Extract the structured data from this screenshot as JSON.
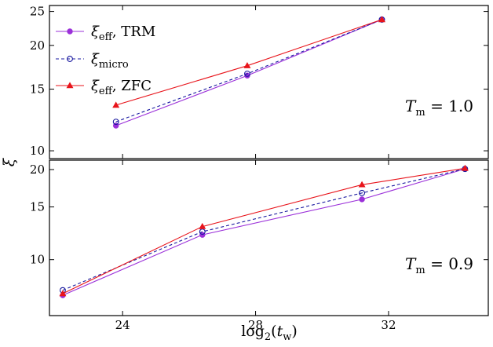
{
  "chart_data": [
    {
      "type": "line",
      "panel": "top",
      "xlim": [
        21.8,
        35.0
      ],
      "ylim": [
        9.5,
        26.0
      ],
      "yscale": "log",
      "yticks": [
        10,
        15,
        20,
        25
      ],
      "ytick_labels": [
        "10",
        "15",
        "20",
        "25"
      ],
      "annotation": "T_m = 1.0",
      "legend_position": "upper-left",
      "series": [
        {
          "name": "ξ_eff, TRM",
          "color": "#9b30d9",
          "marker": "circle-filled",
          "linestyle": "solid",
          "x": [
            23.8,
            27.75,
            31.8
          ],
          "y": [
            11.8,
            16.4,
            23.7
          ]
        },
        {
          "name": "ξ_micro",
          "color": "#1a1aa0",
          "marker": "circle-open",
          "linestyle": "dashed",
          "x": [
            23.8,
            27.75,
            31.8
          ],
          "y": [
            12.1,
            16.6,
            23.7
          ]
        },
        {
          "name": "ξ_eff, ZFC",
          "color": "#e8141b",
          "marker": "triangle",
          "linestyle": "solid",
          "x": [
            23.8,
            27.75,
            31.8
          ],
          "y": [
            13.5,
            17.5,
            23.7
          ]
        }
      ]
    },
    {
      "type": "line",
      "panel": "bottom",
      "xlim": [
        21.8,
        35.0
      ],
      "ylim": [
        6.5,
        21.5
      ],
      "yscale": "log",
      "xlabel": "log2(t_w)",
      "ylabel": "ξ",
      "xticks": [
        24,
        28,
        32
      ],
      "xtick_labels": [
        "24",
        "28",
        "32"
      ],
      "yticks": [
        10,
        15,
        20
      ],
      "ytick_labels": [
        "10",
        "15",
        "20"
      ],
      "annotation": "T_m = 0.9",
      "series": [
        {
          "name": "ξ_eff, TRM",
          "color": "#9b30d9",
          "marker": "circle-filled",
          "linestyle": "solid",
          "x": [
            22.2,
            26.4,
            31.2,
            34.3
          ],
          "y": [
            7.6,
            12.1,
            15.9,
            20.1
          ]
        },
        {
          "name": "ξ_micro",
          "color": "#1a1aa0",
          "marker": "circle-open",
          "linestyle": "dashed",
          "x": [
            22.2,
            26.4,
            31.2,
            34.3
          ],
          "y": [
            7.9,
            12.4,
            16.7,
            20.1
          ]
        },
        {
          "name": "ξ_eff, ZFC",
          "color": "#e8141b",
          "marker": "triangle",
          "linestyle": "solid",
          "x": [
            22.2,
            26.4,
            31.2,
            34.3
          ],
          "y": [
            7.7,
            12.9,
            17.8,
            20.2
          ]
        }
      ]
    }
  ]
}
